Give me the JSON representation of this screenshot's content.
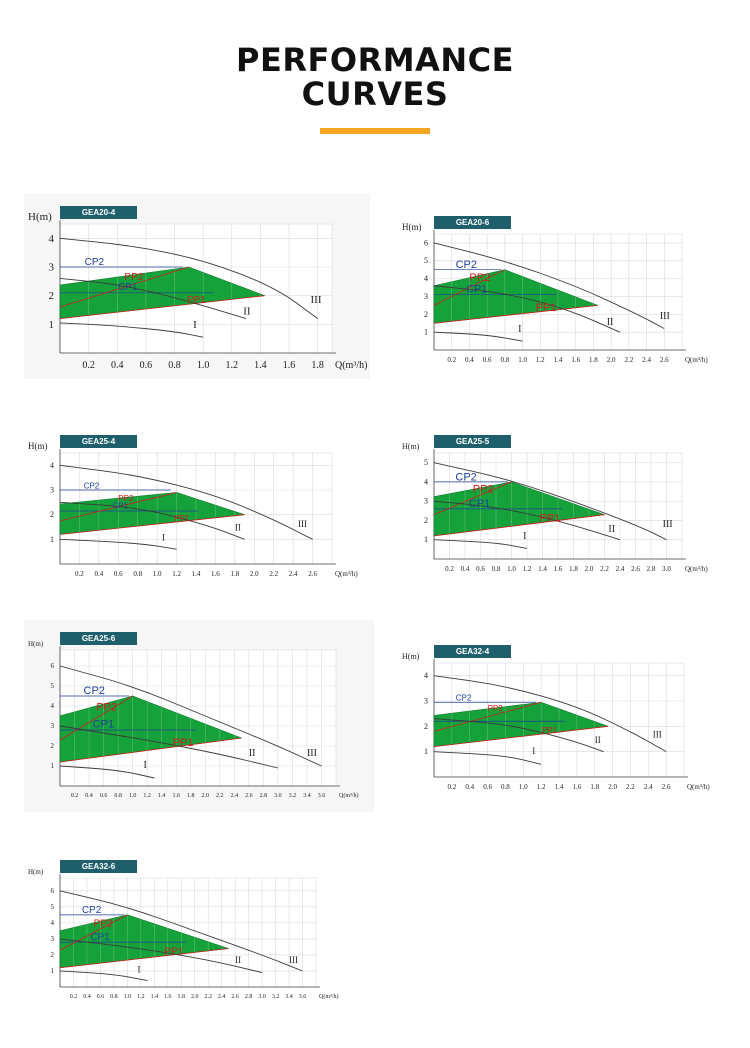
{
  "page": {
    "title_line1": "PERFORMANCE",
    "title_line2": "CURVES",
    "accent_color": "#f4a623",
    "label_bg": "#1e5f6b",
    "fill_color": "#16a23a",
    "cp_color": "#1f3f9a",
    "pp_color": "#d01c1c"
  },
  "chart_data": [
    {
      "model": "GEA20-4",
      "type": "line",
      "ylabel": "H(m)",
      "xlabel": "Q(m³/h)",
      "xlim": [
        0,
        1.9
      ],
      "ylim": [
        0,
        4.5
      ],
      "xticks": [
        "0.2",
        "0.4",
        "0.6",
        "0.8",
        "1.0",
        "1.2",
        "1.4",
        "1.6",
        "1.8"
      ],
      "yticks": [
        "1",
        "2",
        "3",
        "4"
      ],
      "speed_curves": [
        {
          "label": "I",
          "points": [
            [
              0,
              1.05
            ],
            [
              0.4,
              0.95
            ],
            [
              0.8,
              0.75
            ],
            [
              1.0,
              0.55
            ]
          ]
        },
        {
          "label": "II",
          "points": [
            [
              0,
              2.6
            ],
            [
              0.4,
              2.4
            ],
            [
              0.8,
              1.95
            ],
            [
              1.3,
              1.2
            ]
          ]
        },
        {
          "label": "III",
          "points": [
            [
              0,
              4.0
            ],
            [
              0.5,
              3.75
            ],
            [
              1.0,
              3.25
            ],
            [
              1.5,
              2.3
            ],
            [
              1.8,
              1.2
            ]
          ]
        }
      ],
      "modes": {
        "CP2": {
          "h": 3.0
        },
        "PP2": {
          "from": [
            0,
            1.6
          ],
          "to": [
            0.9,
            3.0
          ]
        },
        "CP1": {
          "h": 2.1
        },
        "PP1": {
          "from": [
            0,
            1.2
          ],
          "to": [
            1.43,
            2.0
          ]
        }
      },
      "mode_labels": {
        "CP2": "CP2",
        "PP2": "PP2",
        "CP1": "CP1",
        "PP1": "PP1"
      },
      "speed_label_pos": {
        "I": [
          0.93,
          0.88
        ],
        "II": [
          1.28,
          1.35
        ],
        "III": [
          1.75,
          1.75
        ]
      }
    },
    {
      "model": "GEA20-6",
      "type": "line",
      "ylabel": "H(m)",
      "xlabel": "Q(m³/h)",
      "xlim": [
        0,
        2.8
      ],
      "ylim": [
        0,
        6.5
      ],
      "xticks": [
        "0.2",
        "0.4",
        "0.6",
        "0.8",
        "1.0",
        "1.2",
        "1.4",
        "1.6",
        "1.8",
        "2.0",
        "2.2",
        "2.4",
        "2.6"
      ],
      "yticks": [
        "1",
        "2",
        "3",
        "4",
        "5",
        "6"
      ],
      "speed_curves": [
        {
          "label": "I",
          "points": [
            [
              0,
              1.0
            ],
            [
              0.6,
              0.85
            ],
            [
              1.0,
              0.5
            ]
          ]
        },
        {
          "label": "II",
          "points": [
            [
              0,
              3.6
            ],
            [
              0.8,
              3.2
            ],
            [
              1.5,
              2.3
            ],
            [
              2.1,
              1.0
            ]
          ]
        },
        {
          "label": "III",
          "points": [
            [
              0,
              6.0
            ],
            [
              0.8,
              5.0
            ],
            [
              1.6,
              3.6
            ],
            [
              2.3,
              2.0
            ],
            [
              2.6,
              1.2
            ]
          ]
        }
      ],
      "modes": {
        "CP2": {
          "h": 4.5
        },
        "PP2": {
          "from": [
            0,
            2.5
          ],
          "to": [
            0.8,
            4.5
          ]
        },
        "CP1": {
          "h": 3.1
        },
        "PP1": {
          "from": [
            0,
            1.5
          ],
          "to": [
            1.85,
            2.5
          ]
        }
      },
      "mode_labels": {
        "CP2": "CP2",
        "PP2": "PP2",
        "CP1": "CP1",
        "PP1": "PP1"
      },
      "speed_label_pos": {
        "I": [
          0.95,
          1.0
        ],
        "II": [
          1.95,
          1.4
        ],
        "III": [
          2.55,
          1.75
        ]
      }
    },
    {
      "model": "GEA25-4",
      "type": "line",
      "ylabel": "H(m)",
      "xlabel": "Q(m³/h)",
      "xlim": [
        0,
        2.8
      ],
      "ylim": [
        0,
        4.5
      ],
      "xticks": [
        "0.2",
        "0.4",
        "0.6",
        "0.8",
        "1.0",
        "1.2",
        "1.4",
        "1.6",
        "1.8",
        "2.0",
        "2.2",
        "2.4",
        "2.6"
      ],
      "yticks": [
        "1",
        "2",
        "3",
        "4"
      ],
      "speed_curves": [
        {
          "label": "I",
          "points": [
            [
              0,
              1.0
            ],
            [
              0.8,
              0.85
            ],
            [
              1.2,
              0.6
            ]
          ]
        },
        {
          "label": "II",
          "points": [
            [
              0,
              2.5
            ],
            [
              0.8,
              2.3
            ],
            [
              1.5,
              1.6
            ],
            [
              1.9,
              1.0
            ]
          ]
        },
        {
          "label": "III",
          "points": [
            [
              0,
              4.0
            ],
            [
              0.8,
              3.6
            ],
            [
              1.6,
              2.8
            ],
            [
              2.2,
              1.8
            ],
            [
              2.6,
              1.0
            ]
          ]
        }
      ],
      "modes": {
        "CP2": {
          "h": 3.0
        },
        "PP2": {
          "from": [
            0,
            1.75
          ],
          "to": [
            1.2,
            2.9
          ]
        },
        "CP1": {
          "h": 2.15
        },
        "PP1": {
          "from": [
            0,
            1.2
          ],
          "to": [
            1.9,
            2.0
          ]
        }
      },
      "mode_labels": {
        "CP2": "CP2",
        "PP2": "PP2",
        "CP1": "CP1",
        "PP1": "PP1"
      },
      "speed_label_pos": {
        "I": [
          1.05,
          0.95
        ],
        "II": [
          1.8,
          1.35
        ],
        "III": [
          2.45,
          1.5
        ]
      }
    },
    {
      "model": "GEA25-5",
      "type": "line",
      "ylabel": "H(m)",
      "xlabel": "Q(m³/h)",
      "xlim": [
        0,
        3.2
      ],
      "ylim": [
        0,
        5.5
      ],
      "xticks": [
        "0.2",
        "0.4",
        "0.6",
        "0.8",
        "1.0",
        "1.2",
        "1.4",
        "1.6",
        "1.8",
        "2.0",
        "2.2",
        "2.4",
        "2.6",
        "2.8",
        "3.0"
      ],
      "yticks": [
        "1",
        "2",
        "3",
        "4",
        "5"
      ],
      "speed_curves": [
        {
          "label": "I",
          "points": [
            [
              0,
              1.0
            ],
            [
              0.8,
              0.85
            ],
            [
              1.2,
              0.55
            ]
          ]
        },
        {
          "label": "II",
          "points": [
            [
              0,
              3.0
            ],
            [
              0.8,
              2.7
            ],
            [
              1.6,
              2.0
            ],
            [
              2.4,
              1.0
            ]
          ]
        },
        {
          "label": "III",
          "points": [
            [
              0,
              5.0
            ],
            [
              1.0,
              4.1
            ],
            [
              2.0,
              2.7
            ],
            [
              2.7,
              1.6
            ],
            [
              3.0,
              1.0
            ]
          ]
        }
      ],
      "modes": {
        "CP2": {
          "h": 4.0
        },
        "PP2": {
          "from": [
            0,
            2.3
          ],
          "to": [
            1.0,
            4.0
          ]
        },
        "CP1": {
          "h": 2.6
        },
        "PP1": {
          "from": [
            0,
            1.2
          ],
          "to": [
            2.2,
            2.3
          ]
        }
      },
      "mode_labels": {
        "CP2": "CP2",
        "PP2": "PP2",
        "CP1": "CP1",
        "PP1": "PP1"
      },
      "speed_label_pos": {
        "I": [
          1.15,
          1.05
        ],
        "II": [
          2.25,
          1.4
        ],
        "III": [
          2.95,
          1.65
        ]
      }
    },
    {
      "model": "GEA25-6",
      "type": "line",
      "ylabel": "H(m)",
      "xlabel": "Q(m³/h)",
      "xlim": [
        0,
        3.8
      ],
      "ylim": [
        0,
        6.8
      ],
      "xticks": [
        "0.2",
        "0.4",
        "0.6",
        "0.8",
        "1.0",
        "1.2",
        "1.4",
        "1.6",
        "1.8",
        "2.0",
        "2.2",
        "2.4",
        "2.6",
        "2.8",
        "3.0",
        "3.2",
        "3.4",
        "3.6"
      ],
      "yticks": [
        "1",
        "2",
        "3",
        "4",
        "5",
        "6"
      ],
      "speed_curves": [
        {
          "label": "I",
          "points": [
            [
              0,
              1.0
            ],
            [
              0.8,
              0.8
            ],
            [
              1.3,
              0.4
            ]
          ]
        },
        {
          "label": "II",
          "points": [
            [
              0,
              3.0
            ],
            [
              1.2,
              2.3
            ],
            [
              2.2,
              1.6
            ],
            [
              3.0,
              0.9
            ]
          ]
        },
        {
          "label": "III",
          "points": [
            [
              0,
              6.0
            ],
            [
              1.0,
              5.0
            ],
            [
              2.0,
              3.5
            ],
            [
              3.0,
              2.0
            ],
            [
              3.6,
              1.0
            ]
          ]
        }
      ],
      "modes": {
        "CP2": {
          "h": 4.5
        },
        "PP2": {
          "from": [
            0,
            2.3
          ],
          "to": [
            1.0,
            4.5
          ]
        },
        "CP1": {
          "h": 2.8
        },
        "PP1": {
          "from": [
            0,
            1.2
          ],
          "to": [
            2.5,
            2.4
          ]
        }
      },
      "mode_labels": {
        "CP2": "CP2",
        "PP2": "PP2",
        "CP1": "CP1",
        "PP1": "PP1"
      },
      "speed_label_pos": {
        "I": [
          1.15,
          0.9
        ],
        "II": [
          2.6,
          1.5
        ],
        "III": [
          3.4,
          1.5
        ]
      }
    },
    {
      "model": "GEA32-4",
      "type": "line",
      "ylabel": "H(m)",
      "xlabel": "Q(m³/h)",
      "xlim": [
        0,
        2.8
      ],
      "ylim": [
        0,
        4.5
      ],
      "xticks": [
        "0.2",
        "0.4",
        "0.6",
        "0.8",
        "1.0",
        "1.2",
        "1.4",
        "1.6",
        "1.8",
        "2.0",
        "2.2",
        "2.4",
        "2.6"
      ],
      "yticks": [
        "1",
        "2",
        "3",
        "4"
      ],
      "speed_curves": [
        {
          "label": "I",
          "points": [
            [
              0,
              1.0
            ],
            [
              0.8,
              0.85
            ],
            [
              1.2,
              0.5
            ]
          ]
        },
        {
          "label": "II",
          "points": [
            [
              0,
              2.3
            ],
            [
              0.8,
              2.1
            ],
            [
              1.5,
              1.5
            ],
            [
              1.9,
              1.0
            ]
          ]
        },
        {
          "label": "III",
          "points": [
            [
              0,
              4.0
            ],
            [
              0.8,
              3.6
            ],
            [
              1.6,
              2.8
            ],
            [
              2.2,
              1.8
            ],
            [
              2.6,
              1.0
            ]
          ]
        }
      ],
      "modes": {
        "CP2": {
          "h": 2.95
        },
        "PP2": {
          "from": [
            0,
            1.8
          ],
          "to": [
            1.2,
            2.95
          ]
        },
        "CP1": {
          "h": 2.2
        },
        "PP1": {
          "from": [
            0,
            1.2
          ],
          "to": [
            1.95,
            2.0
          ]
        }
      },
      "mode_labels": {
        "CP2": "CP2",
        "PP2": "PP2",
        "CP1": "",
        "PP1": "PP1"
      },
      "speed_label_pos": {
        "I": [
          1.1,
          0.9
        ],
        "II": [
          1.8,
          1.35
        ],
        "III": [
          2.45,
          1.55
        ]
      }
    },
    {
      "model": "GEA32-6",
      "type": "line",
      "ylabel": "H(m)",
      "xlabel": "Q(m³/h)",
      "xlim": [
        0,
        3.8
      ],
      "ylim": [
        0,
        6.8
      ],
      "xticks": [
        "0.2",
        "0.4",
        "0.6",
        "0.8",
        "1.0",
        "1.2",
        "1.4",
        "1.6",
        "1.8",
        "2.0",
        "2.2",
        "2.4",
        "2.6",
        "2.8",
        "3.0",
        "3.2",
        "3.4",
        "3.6"
      ],
      "yticks": [
        "1",
        "2",
        "3",
        "4",
        "5",
        "6"
      ],
      "speed_curves": [
        {
          "label": "I",
          "points": [
            [
              0,
              1.0
            ],
            [
              0.8,
              0.8
            ],
            [
              1.3,
              0.4
            ]
          ]
        },
        {
          "label": "II",
          "points": [
            [
              0,
              3.0
            ],
            [
              1.2,
              2.4
            ],
            [
              2.2,
              1.7
            ],
            [
              3.0,
              0.9
            ]
          ]
        },
        {
          "label": "III",
          "points": [
            [
              0,
              6.0
            ],
            [
              1.0,
              5.0
            ],
            [
              2.0,
              3.5
            ],
            [
              3.0,
              2.0
            ],
            [
              3.6,
              1.0
            ]
          ]
        }
      ],
      "modes": {
        "CP2": {
          "h": 4.5
        },
        "PP2": {
          "from": [
            0,
            2.3
          ],
          "to": [
            1.0,
            4.5
          ]
        },
        "CP1": {
          "h": 2.8
        },
        "PP1": {
          "from": [
            0,
            1.2
          ],
          "to": [
            2.5,
            2.4
          ]
        }
      },
      "mode_labels": {
        "CP2": "CP2",
        "PP2": "PP2",
        "CP1": "CP1",
        "PP1": "PP1"
      },
      "speed_label_pos": {
        "I": [
          1.15,
          0.9
        ],
        "II": [
          2.6,
          1.5
        ],
        "III": [
          3.4,
          1.5
        ]
      }
    }
  ]
}
